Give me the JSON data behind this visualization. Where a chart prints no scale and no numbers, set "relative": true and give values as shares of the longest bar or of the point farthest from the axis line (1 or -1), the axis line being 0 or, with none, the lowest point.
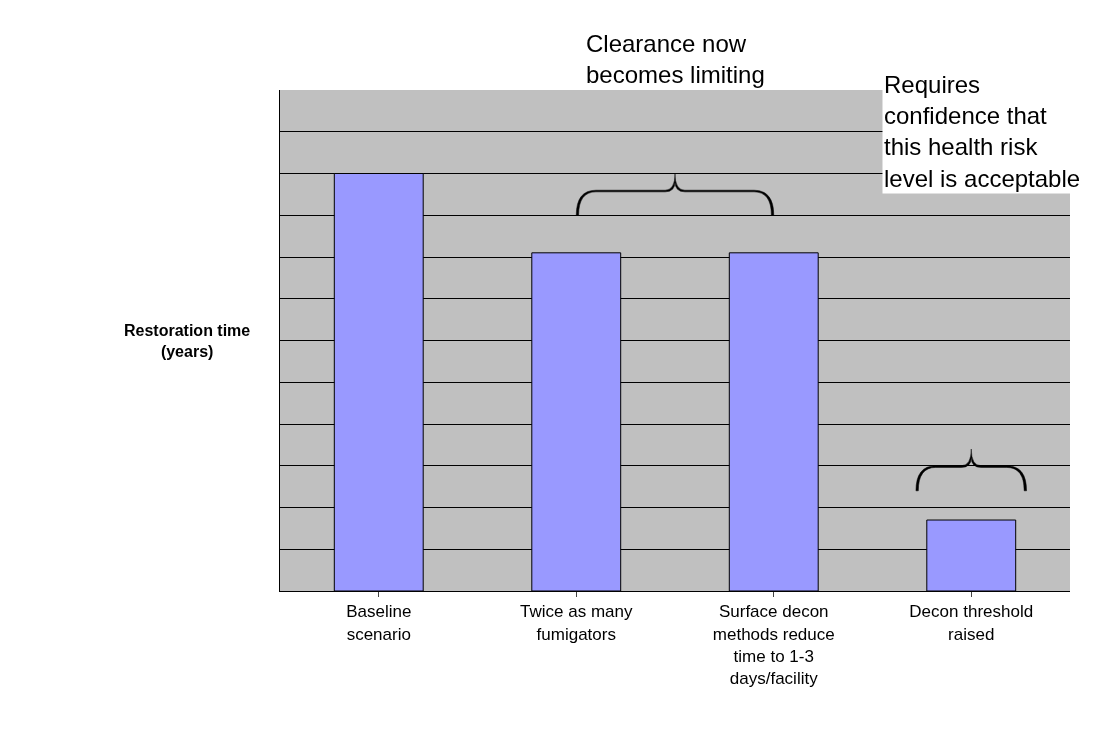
{
  "chart_data": {
    "type": "bar",
    "ylabel": "Restoration time\n(years)",
    "categories": [
      "Baseline\nscenario",
      "Twice as many\nfumigators",
      "Surface decon\nmethods reduce\ntime to 1-3\ndays/facility",
      "Decon threshold\nraised"
    ],
    "values": [
      1,
      0.81,
      0.81,
      0.17
    ],
    "relative": true,
    "color": "#9999ff",
    "grid": "y",
    "annotations": [
      "Clearance now\nbecomes limiting",
      "Requires\nconfidence that\nthis health risk\nlevel is acceptable"
    ]
  }
}
